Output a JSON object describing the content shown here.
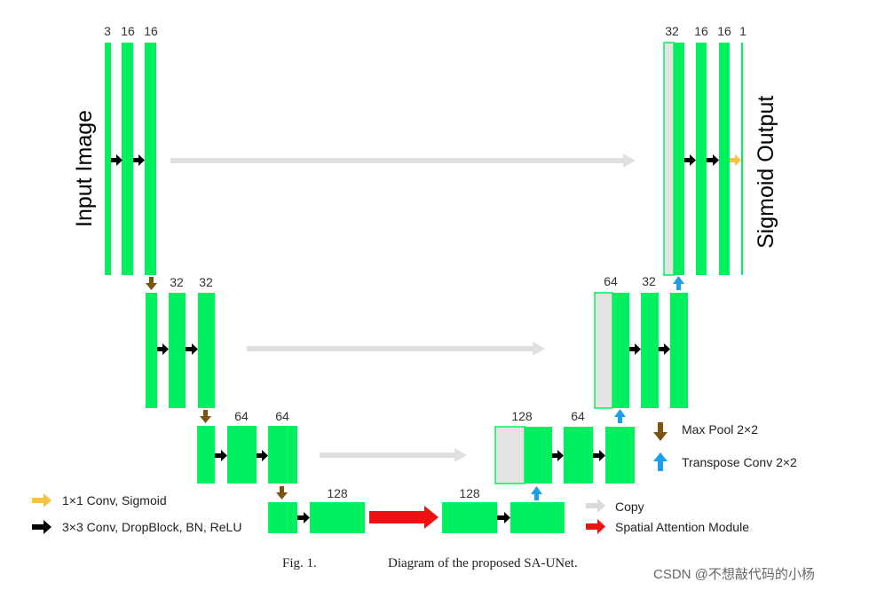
{
  "title_in": "Input Image",
  "title_out": "Sigmoid Output",
  "channels": {
    "enc1": [
      "3",
      "16",
      "16"
    ],
    "enc2": [
      "32",
      "32"
    ],
    "enc3": [
      "64",
      "64"
    ],
    "bottleneck": [
      "128",
      "128"
    ],
    "dec3": [
      "128",
      "64"
    ],
    "dec2": [
      "64",
      "32"
    ],
    "dec1": [
      "32",
      "16",
      "16",
      "1"
    ]
  },
  "legend": {
    "conv1x1": "1×1 Conv, Sigmoid",
    "conv3x3": "3×3 Conv, DropBlock, BN, ReLU",
    "copy": "Copy",
    "sam": "Spatial Attention Module",
    "maxpool": "Max Pool 2×2",
    "transpose": "Transpose Conv 2×2"
  },
  "caption": {
    "fig": "Fig. 1.",
    "text": "Diagram of the proposed SA-UNet."
  },
  "watermark": "CSDN @不想敲代码的小杨",
  "colors": {
    "block": "#00f060",
    "copy_block": "#e4e4e4",
    "copy_arrow": "#e0e0e0",
    "pool": "#7a5410",
    "upconv": "#1aa0e8",
    "conv": "#000000",
    "sigmoid": "#f5c242",
    "attention": "#ee1111"
  }
}
